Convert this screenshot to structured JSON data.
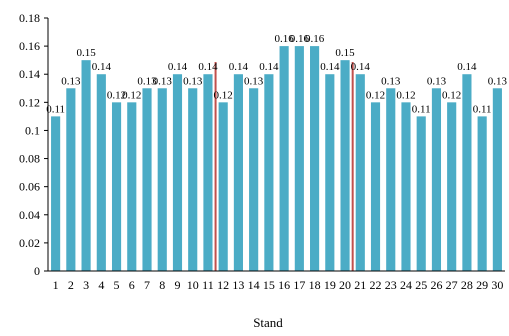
{
  "chart_data": {
    "type": "bar",
    "title": "",
    "xlabel": "Stand",
    "ylabel": "",
    "ylim": [
      0,
      0.18
    ],
    "y_ticks": [
      "0",
      "0.02",
      "0.04",
      "0.06",
      "0.08",
      "0.1",
      "0.12",
      "0.14",
      "0.16",
      "0.18"
    ],
    "categories": [
      "1",
      "2",
      "3",
      "4",
      "5",
      "6",
      "7",
      "8",
      "9",
      "10",
      "11",
      "12",
      "13",
      "14",
      "15",
      "16",
      "17",
      "18",
      "19",
      "20",
      "21",
      "22",
      "23",
      "24",
      "25",
      "26",
      "27",
      "28",
      "29",
      "30"
    ],
    "values": [
      0.11,
      0.13,
      0.15,
      0.14,
      0.12,
      0.12,
      0.13,
      0.13,
      0.14,
      0.13,
      0.14,
      0.12,
      0.14,
      0.13,
      0.14,
      0.16,
      0.16,
      0.16,
      0.14,
      0.15,
      0.14,
      0.12,
      0.13,
      0.12,
      0.11,
      0.13,
      0.12,
      0.14,
      0.11,
      0.13
    ],
    "data_labels": [
      "0.11",
      "0.13",
      "0.15",
      "0.14",
      "0.12",
      "0.12",
      "0.13",
      "0.13",
      "0.14",
      "0.13",
      "0.14",
      "0.12",
      "0.14",
      "0.13",
      "0.14",
      "0.16",
      "0.16",
      "0.16",
      "0.14",
      "0.15",
      "0.14",
      "0.12",
      "0.13",
      "0.12",
      "0.11",
      "0.13",
      "0.12",
      "0.14",
      "0.11",
      "0.13"
    ],
    "reference_lines_after_category": [
      "11",
      "20"
    ],
    "grid": false,
    "legend": "none",
    "colors": {
      "bar": "#4BACC6",
      "reference_line": "#C0504D",
      "axis": "#000000"
    }
  }
}
